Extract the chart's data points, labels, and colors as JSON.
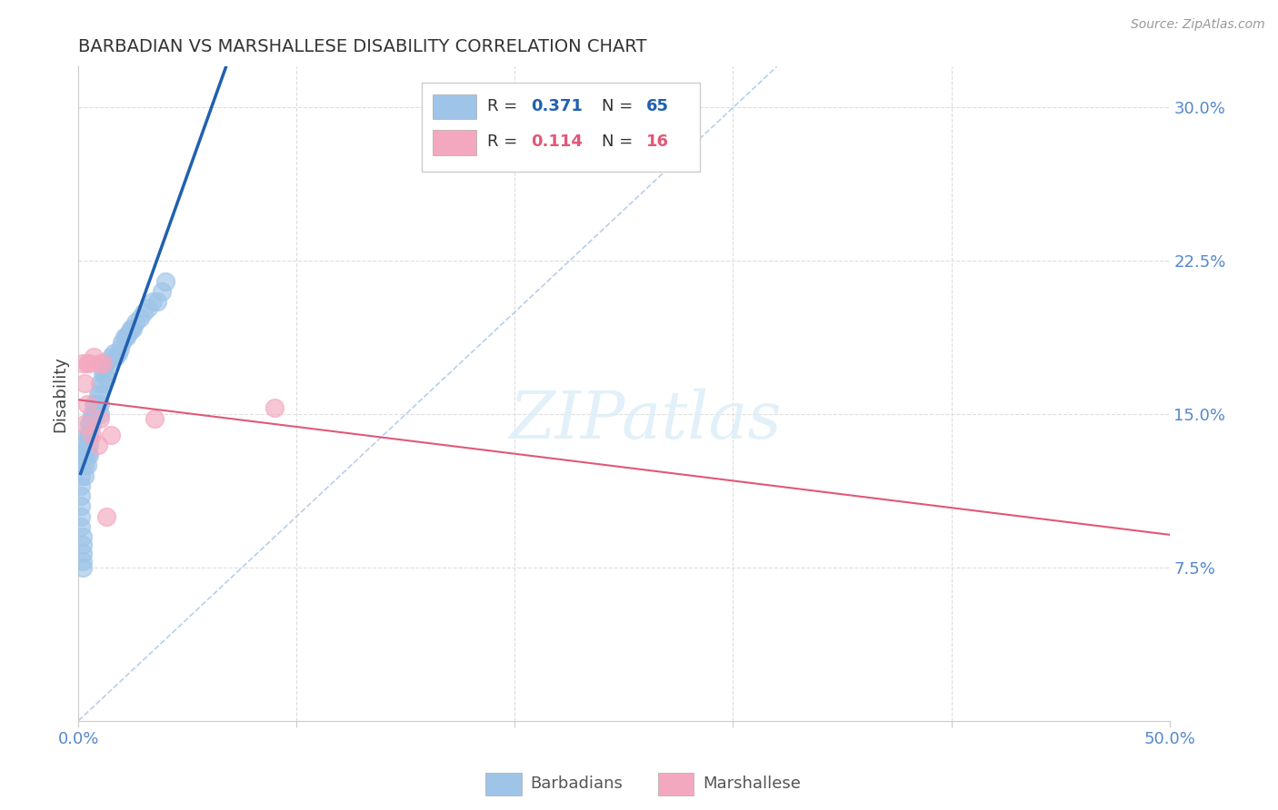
{
  "title": "BARBADIAN VS MARSHALLESE DISABILITY CORRELATION CHART",
  "source": "Source: ZipAtlas.com",
  "ylabel": "Disability",
  "yticks": [
    0.075,
    0.15,
    0.225,
    0.3
  ],
  "ytick_labels": [
    "7.5%",
    "15.0%",
    "22.5%",
    "30.0%"
  ],
  "xlim": [
    0.0,
    0.5
  ],
  "ylim": [
    0.0,
    0.32
  ],
  "legend_blue_R": "0.371",
  "legend_blue_N": "65",
  "legend_pink_R": "0.114",
  "legend_pink_N": "16",
  "barbadian_color": "#9ec4e8",
  "marshallese_color": "#f4a8bf",
  "trend_blue": "#2060b0",
  "trend_pink": "#e05878",
  "diagonal_color": "#b8cfe8",
  "background": "#ffffff",
  "barbadian_x": [
    0.001,
    0.001,
    0.001,
    0.001,
    0.001,
    0.001,
    0.001,
    0.001,
    0.002,
    0.002,
    0.002,
    0.002,
    0.002,
    0.003,
    0.003,
    0.003,
    0.003,
    0.004,
    0.004,
    0.004,
    0.004,
    0.005,
    0.005,
    0.005,
    0.005,
    0.005,
    0.005,
    0.006,
    0.006,
    0.007,
    0.007,
    0.008,
    0.008,
    0.009,
    0.009,
    0.01,
    0.01,
    0.01,
    0.01,
    0.011,
    0.011,
    0.012,
    0.012,
    0.013,
    0.013,
    0.014,
    0.015,
    0.016,
    0.017,
    0.018,
    0.019,
    0.02,
    0.021,
    0.022,
    0.023,
    0.024,
    0.025,
    0.026,
    0.028,
    0.03,
    0.032,
    0.034,
    0.036,
    0.038,
    0.04
  ],
  "barbadian_y": [
    0.13,
    0.125,
    0.12,
    0.115,
    0.11,
    0.105,
    0.1,
    0.095,
    0.09,
    0.086,
    0.082,
    0.078,
    0.075,
    0.135,
    0.13,
    0.125,
    0.12,
    0.14,
    0.135,
    0.13,
    0.125,
    0.145,
    0.145,
    0.14,
    0.14,
    0.135,
    0.13,
    0.15,
    0.145,
    0.155,
    0.15,
    0.155,
    0.15,
    0.16,
    0.155,
    0.165,
    0.16,
    0.155,
    0.15,
    0.17,
    0.165,
    0.175,
    0.17,
    0.175,
    0.168,
    0.175,
    0.178,
    0.18,
    0.178,
    0.18,
    0.182,
    0.185,
    0.188,
    0.188,
    0.19,
    0.192,
    0.192,
    0.195,
    0.197,
    0.2,
    0.202,
    0.205,
    0.205,
    0.21,
    0.215
  ],
  "marshallese_x": [
    0.002,
    0.003,
    0.003,
    0.004,
    0.004,
    0.005,
    0.006,
    0.007,
    0.009,
    0.01,
    0.01,
    0.011,
    0.013,
    0.015,
    0.035,
    0.09
  ],
  "marshallese_y": [
    0.175,
    0.165,
    0.145,
    0.175,
    0.155,
    0.175,
    0.14,
    0.178,
    0.135,
    0.175,
    0.148,
    0.175,
    0.1,
    0.14,
    0.148,
    0.153
  ],
  "grid_color": "#dddddd",
  "tick_color": "#5588cc",
  "spine_color": "#cccccc"
}
